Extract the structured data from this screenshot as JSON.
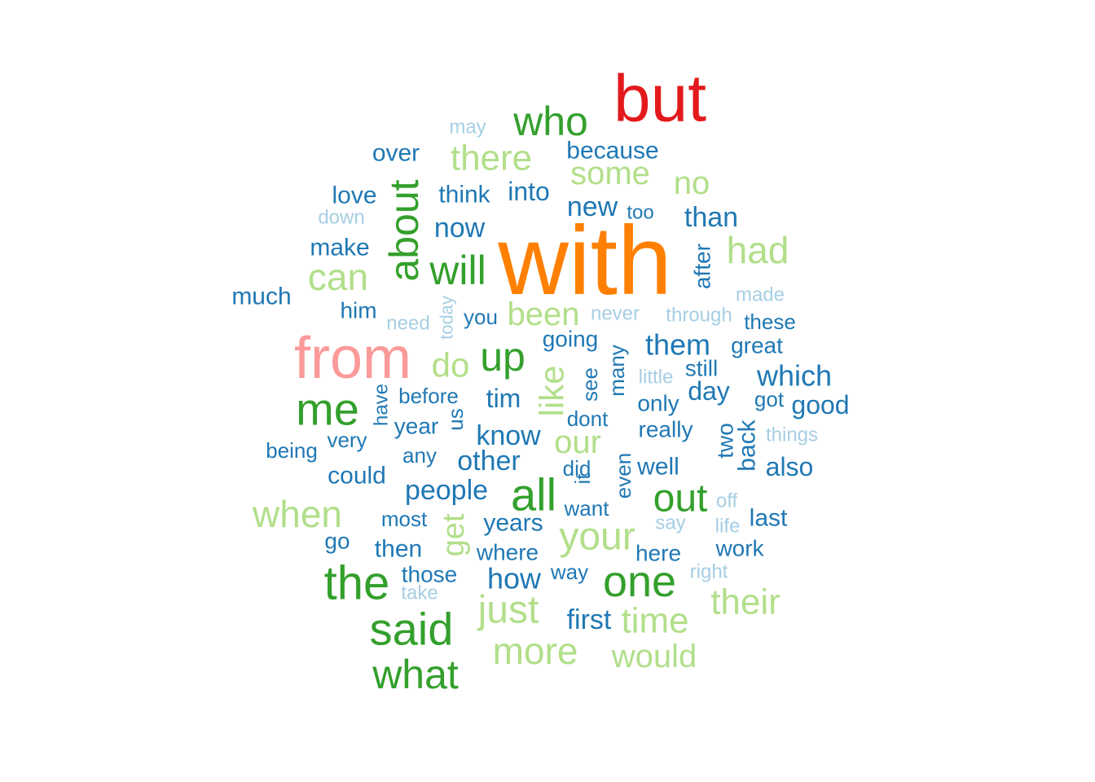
{
  "wordcloud": {
    "palette": {
      "c1": "#a6cee3",
      "c2": "#1f78b4",
      "c3": "#b2df8a",
      "c4": "#33a02c",
      "c5": "#fb9a99",
      "c6": "#e31a1c",
      "c7": "#ff7f00"
    },
    "words": [
      {
        "text": "with",
        "color": "#ff7f00",
        "rotate": false
      },
      {
        "text": "but",
        "color": "#e31a1c",
        "rotate": false
      },
      {
        "text": "from",
        "color": "#fb9a99",
        "rotate": false
      },
      {
        "text": "who",
        "color": "#33a02c",
        "rotate": false
      },
      {
        "text": "about",
        "color": "#33a02c",
        "rotate": true
      },
      {
        "text": "will",
        "color": "#33a02c",
        "rotate": false
      },
      {
        "text": "me",
        "color": "#33a02c",
        "rotate": false
      },
      {
        "text": "up",
        "color": "#33a02c",
        "rotate": false
      },
      {
        "text": "all",
        "color": "#33a02c",
        "rotate": false
      },
      {
        "text": "out",
        "color": "#33a02c",
        "rotate": false
      },
      {
        "text": "the",
        "color": "#33a02c",
        "rotate": false
      },
      {
        "text": "one",
        "color": "#33a02c",
        "rotate": false
      },
      {
        "text": "said",
        "color": "#33a02c",
        "rotate": false
      },
      {
        "text": "what",
        "color": "#33a02c",
        "rotate": false
      },
      {
        "text": "there",
        "color": "#b2df8a",
        "rotate": false
      },
      {
        "text": "some",
        "color": "#b2df8a",
        "rotate": false
      },
      {
        "text": "no",
        "color": "#b2df8a",
        "rotate": false
      },
      {
        "text": "had",
        "color": "#b2df8a",
        "rotate": false
      },
      {
        "text": "can",
        "color": "#b2df8a",
        "rotate": false
      },
      {
        "text": "been",
        "color": "#b2df8a",
        "rotate": false
      },
      {
        "text": "do",
        "color": "#b2df8a",
        "rotate": false
      },
      {
        "text": "like",
        "color": "#b2df8a",
        "rotate": true
      },
      {
        "text": "our",
        "color": "#b2df8a",
        "rotate": false
      },
      {
        "text": "when",
        "color": "#b2df8a",
        "rotate": false
      },
      {
        "text": "get",
        "color": "#b2df8a",
        "rotate": true
      },
      {
        "text": "your",
        "color": "#b2df8a",
        "rotate": false
      },
      {
        "text": "just",
        "color": "#b2df8a",
        "rotate": false
      },
      {
        "text": "their",
        "color": "#b2df8a",
        "rotate": false
      },
      {
        "text": "time",
        "color": "#b2df8a",
        "rotate": false
      },
      {
        "text": "more",
        "color": "#b2df8a",
        "rotate": false
      },
      {
        "text": "would",
        "color": "#b2df8a",
        "rotate": false
      },
      {
        "text": "may",
        "color": "#a6cee3",
        "rotate": false
      },
      {
        "text": "down",
        "color": "#a6cee3",
        "rotate": false
      },
      {
        "text": "made",
        "color": "#a6cee3",
        "rotate": false
      },
      {
        "text": "need",
        "color": "#a6cee3",
        "rotate": false
      },
      {
        "text": "today",
        "color": "#a6cee3",
        "rotate": true
      },
      {
        "text": "never",
        "color": "#a6cee3",
        "rotate": false
      },
      {
        "text": "through",
        "color": "#a6cee3",
        "rotate": false
      },
      {
        "text": "little",
        "color": "#a6cee3",
        "rotate": false
      },
      {
        "text": "things",
        "color": "#a6cee3",
        "rotate": false
      },
      {
        "text": "off",
        "color": "#a6cee3",
        "rotate": false
      },
      {
        "text": "say",
        "color": "#a6cee3",
        "rotate": false
      },
      {
        "text": "life",
        "color": "#a6cee3",
        "rotate": false
      },
      {
        "text": "right",
        "color": "#a6cee3",
        "rotate": false
      },
      {
        "text": "take",
        "color": "#a6cee3",
        "rotate": false
      },
      {
        "text": "over",
        "color": "#1f78b4",
        "rotate": false
      },
      {
        "text": "because",
        "color": "#1f78b4",
        "rotate": false
      },
      {
        "text": "love",
        "color": "#1f78b4",
        "rotate": false
      },
      {
        "text": "think",
        "color": "#1f78b4",
        "rotate": false
      },
      {
        "text": "into",
        "color": "#1f78b4",
        "rotate": false
      },
      {
        "text": "new",
        "color": "#1f78b4",
        "rotate": false
      },
      {
        "text": "too",
        "color": "#1f78b4",
        "rotate": false
      },
      {
        "text": "than",
        "color": "#1f78b4",
        "rotate": false
      },
      {
        "text": "now",
        "color": "#1f78b4",
        "rotate": false
      },
      {
        "text": "make",
        "color": "#1f78b4",
        "rotate": false
      },
      {
        "text": "after",
        "color": "#1f78b4",
        "rotate": true
      },
      {
        "text": "much",
        "color": "#1f78b4",
        "rotate": false
      },
      {
        "text": "him",
        "color": "#1f78b4",
        "rotate": false
      },
      {
        "text": "you",
        "color": "#1f78b4",
        "rotate": false
      },
      {
        "text": "these",
        "color": "#1f78b4",
        "rotate": false
      },
      {
        "text": "going",
        "color": "#1f78b4",
        "rotate": false
      },
      {
        "text": "them",
        "color": "#1f78b4",
        "rotate": false
      },
      {
        "text": "great",
        "color": "#1f78b4",
        "rotate": false
      },
      {
        "text": "many",
        "color": "#1f78b4",
        "rotate": true
      },
      {
        "text": "still",
        "color": "#1f78b4",
        "rotate": false
      },
      {
        "text": "which",
        "color": "#1f78b4",
        "rotate": false
      },
      {
        "text": "see",
        "color": "#1f78b4",
        "rotate": true
      },
      {
        "text": "day",
        "color": "#1f78b4",
        "rotate": false
      },
      {
        "text": "tim",
        "color": "#1f78b4",
        "rotate": false
      },
      {
        "text": "before",
        "color": "#1f78b4",
        "rotate": false
      },
      {
        "text": "have",
        "color": "#1f78b4",
        "rotate": true
      },
      {
        "text": "only",
        "color": "#1f78b4",
        "rotate": false
      },
      {
        "text": "got",
        "color": "#1f78b4",
        "rotate": false
      },
      {
        "text": "good",
        "color": "#1f78b4",
        "rotate": false
      },
      {
        "text": "year",
        "color": "#1f78b4",
        "rotate": false
      },
      {
        "text": "us",
        "color": "#1f78b4",
        "rotate": true
      },
      {
        "text": "dont",
        "color": "#1f78b4",
        "rotate": false
      },
      {
        "text": "really",
        "color": "#1f78b4",
        "rotate": false
      },
      {
        "text": "two",
        "color": "#1f78b4",
        "rotate": true
      },
      {
        "text": "back",
        "color": "#1f78b4",
        "rotate": true
      },
      {
        "text": "know",
        "color": "#1f78b4",
        "rotate": false
      },
      {
        "text": "being",
        "color": "#1f78b4",
        "rotate": false
      },
      {
        "text": "very",
        "color": "#1f78b4",
        "rotate": false
      },
      {
        "text": "any",
        "color": "#1f78b4",
        "rotate": false
      },
      {
        "text": "other",
        "color": "#1f78b4",
        "rotate": false
      },
      {
        "text": "did",
        "color": "#1f78b4",
        "rotate": false
      },
      {
        "text": "even",
        "color": "#1f78b4",
        "rotate": true
      },
      {
        "text": "well",
        "color": "#1f78b4",
        "rotate": false
      },
      {
        "text": "also",
        "color": "#1f78b4",
        "rotate": false
      },
      {
        "text": "could",
        "color": "#1f78b4",
        "rotate": false
      },
      {
        "text": "it",
        "color": "#1f78b4",
        "rotate": true
      },
      {
        "text": "people",
        "color": "#1f78b4",
        "rotate": false
      },
      {
        "text": "want",
        "color": "#1f78b4",
        "rotate": false
      },
      {
        "text": "most",
        "color": "#1f78b4",
        "rotate": false
      },
      {
        "text": "years",
        "color": "#1f78b4",
        "rotate": false
      },
      {
        "text": "last",
        "color": "#1f78b4",
        "rotate": false
      },
      {
        "text": "go",
        "color": "#1f78b4",
        "rotate": false
      },
      {
        "text": "then",
        "color": "#1f78b4",
        "rotate": false
      },
      {
        "text": "where",
        "color": "#1f78b4",
        "rotate": false
      },
      {
        "text": "here",
        "color": "#1f78b4",
        "rotate": false
      },
      {
        "text": "work",
        "color": "#1f78b4",
        "rotate": false
      },
      {
        "text": "those",
        "color": "#1f78b4",
        "rotate": false
      },
      {
        "text": "way",
        "color": "#1f78b4",
        "rotate": false
      },
      {
        "text": "how",
        "color": "#1f78b4",
        "rotate": false
      },
      {
        "text": "first",
        "color": "#1f78b4",
        "rotate": false
      }
    ]
  }
}
